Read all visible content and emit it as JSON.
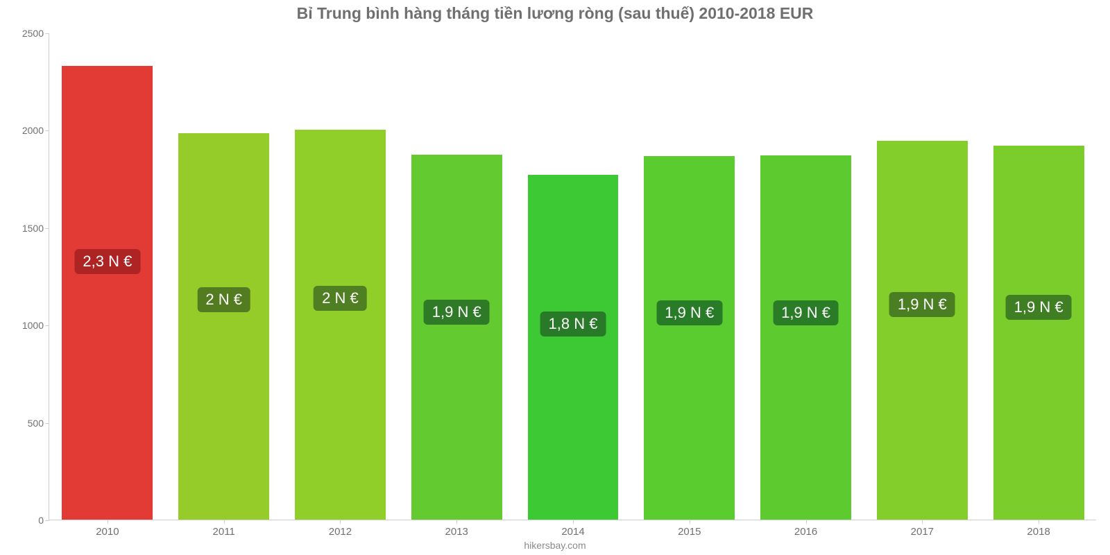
{
  "chart": {
    "type": "bar",
    "title": "Bỉ Trung bình hàng tháng tiền lương ròng (sau thuế) 2010-2018 EUR",
    "title_fontsize": 23,
    "title_color": "#6f6f6f",
    "footer": "hikersbay.com",
    "footer_color": "#8a8a8a",
    "background_color": "#ffffff",
    "axis_color": "#cfcfcf",
    "tick_label_color": "#707070",
    "tick_label_fontsize": 14,
    "ylim": [
      0,
      2500
    ],
    "ytick_step": 500,
    "yticks": [
      0,
      500,
      1000,
      1500,
      2000,
      2500
    ],
    "categories": [
      "2010",
      "2011",
      "2012",
      "2013",
      "2014",
      "2015",
      "2016",
      "2017",
      "2018"
    ],
    "values": [
      2330,
      1985,
      2000,
      1875,
      1770,
      1865,
      1870,
      1945,
      1920
    ],
    "bar_labels": [
      "2,3 N €",
      "2 N €",
      "2 N €",
      "1,9 N €",
      "1,8 N €",
      "1,9 N €",
      "1,9 N €",
      "1,9 N €",
      "1,9 N €"
    ],
    "bar_colors": [
      "#e23a35",
      "#95cc29",
      "#90ce29",
      "#63cb2f",
      "#3cc934",
      "#5acc30",
      "#5dcb30",
      "#84ce2b",
      "#7bcd2c"
    ],
    "bar_label_bg": [
      "#ae2324",
      "#537c21",
      "#4f7f22",
      "#2e7a26",
      "#287a28",
      "#287c27",
      "#2a7c26",
      "#497e22",
      "#407e24"
    ],
    "bar_label_color": "#ffffff",
    "bar_label_fontsize": 22,
    "bar_width_ratio": 0.78
  }
}
